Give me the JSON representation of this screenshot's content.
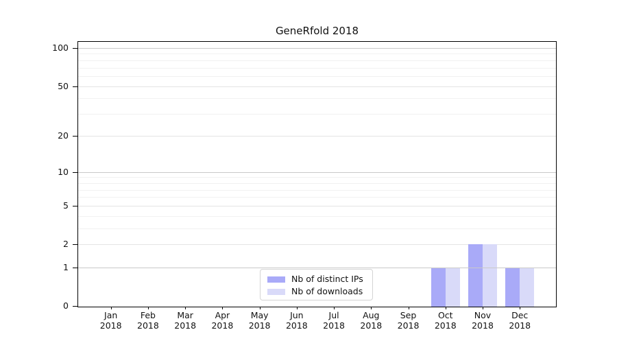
{
  "chart_data": {
    "type": "bar",
    "title": "GeneRfold 2018",
    "categories": [
      "Jan",
      "Feb",
      "Mar",
      "Apr",
      "May",
      "Jun",
      "Jul",
      "Aug",
      "Sep",
      "Oct",
      "Nov",
      "Dec"
    ],
    "category_year": "2018",
    "series": [
      {
        "name": "Nb of distinct IPs",
        "color": "#a9aaf8",
        "values": [
          0,
          0,
          0,
          0,
          0,
          0,
          0,
          0,
          0,
          1,
          2,
          1
        ]
      },
      {
        "name": "Nb of downloads",
        "color": "#d9daf9",
        "values": [
          0,
          0,
          0,
          0,
          0,
          0,
          0,
          0,
          0,
          1,
          2,
          1
        ]
      }
    ],
    "y_axis": {
      "scale": "log1p",
      "ticks": [
        0,
        1,
        2,
        5,
        10,
        20,
        50,
        100
      ],
      "decade_gridlines": [
        1,
        10,
        100
      ],
      "minor_gridlines": [
        3,
        4,
        6,
        7,
        8,
        9,
        30,
        40,
        60,
        70,
        80,
        90
      ],
      "range": [
        0,
        100
      ]
    },
    "legend": {
      "position": "lower-center-inside"
    },
    "colors": {
      "spine": "#000000",
      "decade_grid": "#c9c9c9",
      "major_grid": "#e4e4e4",
      "minor_grid": "#f1f1f1",
      "text": "#111111",
      "legend_border": "#d4d4d4",
      "legend_bg": "#ffffff"
    }
  }
}
